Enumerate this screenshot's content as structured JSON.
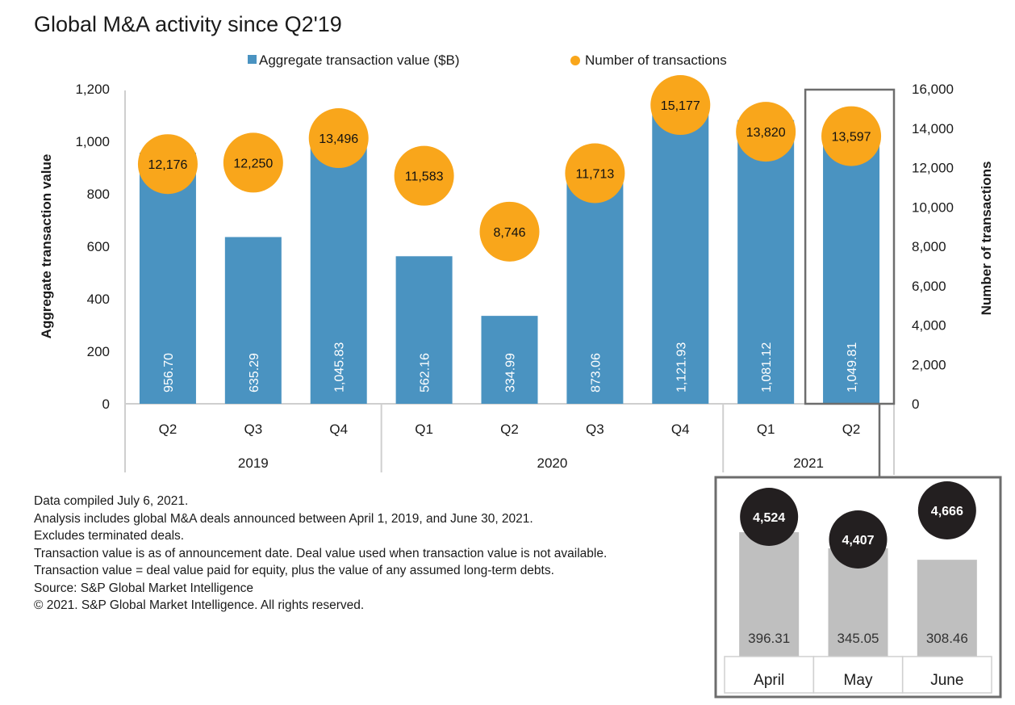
{
  "chart_data": {
    "type": "bar",
    "title": "Global M&A activity since Q2'19",
    "legend": {
      "position": "top-center",
      "entries": [
        {
          "name": "Aggregate transaction value ($B)",
          "marker": "square",
          "color": "#4A93C1"
        },
        {
          "name": "Number of transactions",
          "marker": "circle",
          "color": "#F9A61B"
        }
      ]
    },
    "ylabel": "Aggregate transaction value",
    "y2label": "Number of transactions",
    "ylim": [
      0,
      1200
    ],
    "y2lim": [
      0,
      16000
    ],
    "yticks": [
      "0",
      "200",
      "400",
      "600",
      "800",
      "1,000",
      "1,200"
    ],
    "y2ticks": [
      "0",
      "2,000",
      "4,000",
      "6,000",
      "8,000",
      "10,000",
      "12,000",
      "14,000",
      "16,000"
    ],
    "grid": false,
    "categories": [
      "Q2",
      "Q3",
      "Q4",
      "Q1",
      "Q2",
      "Q3",
      "Q4",
      "Q1",
      "Q2"
    ],
    "groups": [
      {
        "label": "2019",
        "count": 3
      },
      {
        "label": "2020",
        "count": 4
      },
      {
        "label": "2021",
        "count": 2
      }
    ],
    "series": [
      {
        "name": "Aggregate transaction value ($B)",
        "type": "bar",
        "axis": "left",
        "color": "#4A93C1",
        "values": [
          956.7,
          635.29,
          1045.83,
          562.16,
          334.99,
          873.06,
          1121.93,
          1081.12,
          1049.81
        ],
        "labels": [
          "956.70",
          "635.29",
          "1,045.83",
          "562.16",
          "334.99",
          "873.06",
          "1,121.93",
          "1,081.12",
          "1,049.81"
        ]
      },
      {
        "name": "Number of transactions",
        "type": "scatter",
        "axis": "right",
        "color": "#F9A61B",
        "values": [
          12176,
          12250,
          13496,
          11583,
          8746,
          11713,
          15177,
          13820,
          13597
        ],
        "labels": [
          "12,176",
          "12,250",
          "13,496",
          "11,583",
          "8,746",
          "11,713",
          "15,177",
          "13,820",
          "13,597"
        ]
      }
    ],
    "highlight": {
      "category_index": 8,
      "note": "Q2 2021 broken out by month"
    },
    "inset": {
      "type": "bar",
      "categories": [
        "April",
        "May",
        "June"
      ],
      "series": [
        {
          "name": "Aggregate transaction value ($B)",
          "color": "#BFBFBF",
          "values": [
            396.31,
            345.05,
            308.46
          ],
          "labels": [
            "396.31",
            "345.05",
            "308.46"
          ]
        },
        {
          "name": "Number of transactions",
          "color": "#231F20",
          "values": [
            4524,
            4407,
            4666
          ],
          "labels": [
            "4,524",
            "4,407",
            "4,666"
          ]
        }
      ]
    }
  },
  "notes": [
    "Data compiled July 6, 2021.",
    "Analysis includes global M&A deals announced between April 1, 2019, and June 30, 2021.",
    "Excludes terminated deals.",
    "Transaction value is as of announcement date. Deal value used when transaction value is not available.",
    "Transaction value = deal value paid for equity, plus the value of any assumed long-term debts.",
    "Source: S&P Global Market Intelligence",
    "© 2021. S&P Global Market Intelligence. All rights reserved."
  ]
}
